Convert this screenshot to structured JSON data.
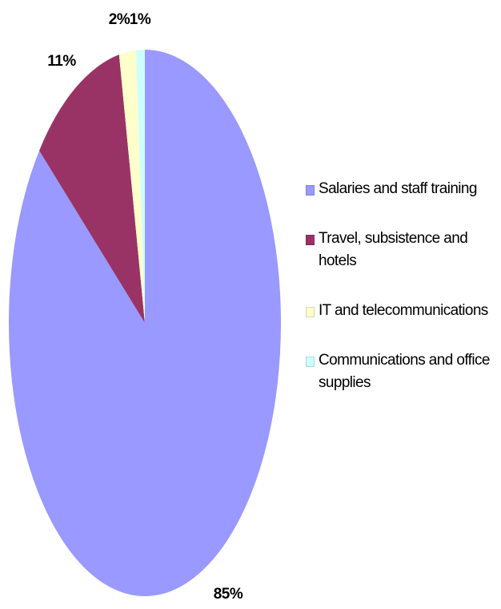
{
  "chart_data": {
    "type": "pie",
    "title": "",
    "legend_placement": "right",
    "start_angle_deg": 0,
    "direction": "clockwise",
    "slices": [
      {
        "name": "Salaries and staff training",
        "value": 85,
        "label": "85%",
        "color": "#9999ff"
      },
      {
        "name": "Travel, subsistence and hotels",
        "value": 11,
        "label": "11%",
        "color": "#993366"
      },
      {
        "name": "IT and telecommunications",
        "value": 2,
        "label": "2%",
        "color": "#ffffcc"
      },
      {
        "name": "Communications and office supplies",
        "value": 1,
        "label": "1%",
        "color": "#ccffff"
      }
    ]
  }
}
